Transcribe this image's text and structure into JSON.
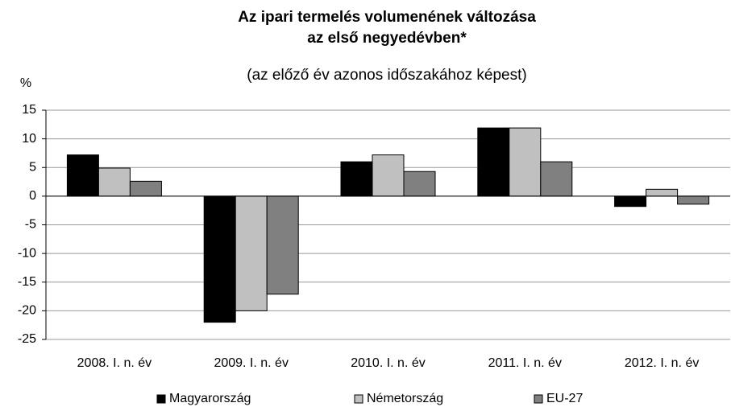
{
  "chart_data": {
    "type": "bar",
    "title": "Az ipari termelés volumenének változása",
    "title_line2": "az első negyedévben*",
    "subtitle": "(az előző év azonos időszakához képest)",
    "y_label": "%",
    "categories": [
      "2008. I. n. év",
      "2009. I. n. év",
      "2010. I. n. év",
      "2011. I. n. év",
      "2012. I. n. év"
    ],
    "series": [
      {
        "name": "Magyarország",
        "color": "#000000",
        "values": [
          7.2,
          -22.0,
          6.0,
          11.9,
          -1.8
        ]
      },
      {
        "name": "Németország",
        "color": "#c0c0c0",
        "values": [
          4.9,
          -20.0,
          7.2,
          11.9,
          1.2
        ]
      },
      {
        "name": "EU-27",
        "color": "#808080",
        "values": [
          2.6,
          -17.1,
          4.3,
          6.0,
          -1.4
        ]
      }
    ],
    "ylim": [
      -25,
      15
    ],
    "yticks": [
      -25,
      -20,
      -15,
      -10,
      -5,
      0,
      5,
      10,
      15
    ],
    "grid": true,
    "legend": "bottom"
  }
}
